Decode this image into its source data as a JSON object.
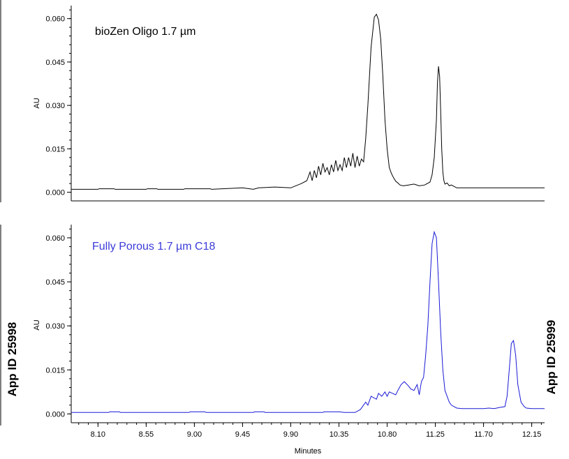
{
  "chart_data": [
    {
      "type": "line",
      "title": "bioZen Oligo 1.7 µm",
      "title_color": "#000000",
      "line_color": "#000000",
      "ylabel": "AU",
      "xlabel": "",
      "xlim": [
        7.85,
        12.27
      ],
      "ylim": [
        -0.003,
        0.0645
      ],
      "yticks": [
        "0.060",
        "0.045",
        "0.030",
        "0.015",
        "0.000"
      ],
      "ytick_values": [
        0.06,
        0.045,
        0.03,
        0.015,
        0.0
      ],
      "series": [
        {
          "x": [
            7.85,
            8.1,
            8.11,
            8.25,
            8.26,
            8.55,
            8.56,
            8.65,
            8.66,
            8.9,
            8.91,
            9.15,
            9.16,
            9.45,
            9.55,
            9.6,
            9.75,
            9.9,
            10.0,
            10.05,
            10.08,
            10.1,
            10.12,
            10.14,
            10.16,
            10.18,
            10.2,
            10.22,
            10.24,
            10.26,
            10.28,
            10.3,
            10.32,
            10.34,
            10.36,
            10.38,
            10.4,
            10.42,
            10.44,
            10.46,
            10.48,
            10.5,
            10.52,
            10.54,
            10.56,
            10.58,
            10.6,
            10.62,
            10.65,
            10.68,
            10.7,
            10.72,
            10.74,
            10.76,
            10.78,
            10.8,
            10.82,
            10.84,
            10.86,
            10.88,
            10.9,
            10.92,
            10.95,
            11.0,
            11.05,
            11.1,
            11.15,
            11.2,
            11.22,
            11.24,
            11.26,
            11.27,
            11.28,
            11.29,
            11.3,
            11.31,
            11.32,
            11.33,
            11.34,
            11.36,
            11.38,
            11.4,
            11.45,
            11.5,
            12.27
          ],
          "y": [
            0.001,
            0.001,
            0.0012,
            0.0012,
            0.001,
            0.001,
            0.0012,
            0.0012,
            0.001,
            0.001,
            0.0012,
            0.0012,
            0.001,
            0.0015,
            0.001,
            0.0015,
            0.0018,
            0.0015,
            0.003,
            0.004,
            0.007,
            0.004,
            0.0075,
            0.005,
            0.009,
            0.006,
            0.01,
            0.007,
            0.0085,
            0.006,
            0.0095,
            0.007,
            0.011,
            0.0075,
            0.0095,
            0.0075,
            0.012,
            0.0085,
            0.012,
            0.009,
            0.0135,
            0.0085,
            0.0125,
            0.009,
            0.0115,
            0.0105,
            0.0185,
            0.03,
            0.05,
            0.0605,
            0.0615,
            0.0595,
            0.053,
            0.04,
            0.025,
            0.015,
            0.0085,
            0.0065,
            0.005,
            0.0038,
            0.0032,
            0.0025,
            0.0022,
            0.0025,
            0.0028,
            0.0022,
            0.0025,
            0.0035,
            0.006,
            0.012,
            0.025,
            0.038,
            0.0435,
            0.04,
            0.028,
            0.015,
            0.007,
            0.004,
            0.0028,
            0.0032,
            0.0022,
            0.0025,
            0.0015,
            0.0015,
            0.0015
          ]
        }
      ]
    },
    {
      "type": "line",
      "title": "Fully Porous 1.7 µm C18",
      "title_color": "#3b3bd9",
      "line_color": "#1a1ad6",
      "ylabel": "AU",
      "xlabel": "Minutes",
      "xlim": [
        7.85,
        12.27
      ],
      "ylim": [
        -0.003,
        0.0645
      ],
      "xticks": [
        "8.10",
        "8.55",
        "9.00",
        "9.45",
        "9.90",
        "10.35",
        "10.80",
        "11.25",
        "11.70",
        "12.15"
      ],
      "xtick_values": [
        8.1,
        8.55,
        9.0,
        9.45,
        9.9,
        10.35,
        10.8,
        11.25,
        11.7,
        12.15
      ],
      "yticks": [
        "0.060",
        "0.045",
        "0.030",
        "0.015",
        "0.000"
      ],
      "ytick_values": [
        0.06,
        0.045,
        0.03,
        0.015,
        0.0
      ],
      "series": [
        {
          "x": [
            7.85,
            8.2,
            8.21,
            8.3,
            8.31,
            8.95,
            8.96,
            9.1,
            9.11,
            9.55,
            9.56,
            9.65,
            9.66,
            10.2,
            10.21,
            10.35,
            10.4,
            10.5,
            10.55,
            10.6,
            10.62,
            10.65,
            10.7,
            10.72,
            10.75,
            10.78,
            10.8,
            10.82,
            10.85,
            10.88,
            10.9,
            10.93,
            10.96,
            11.0,
            11.02,
            11.05,
            11.08,
            11.1,
            11.12,
            11.14,
            11.16,
            11.18,
            11.2,
            11.22,
            11.24,
            11.26,
            11.28,
            11.3,
            11.32,
            11.34,
            11.36,
            11.38,
            11.4,
            11.45,
            11.5,
            11.6,
            11.7,
            11.75,
            11.8,
            11.85,
            11.9,
            11.92,
            11.94,
            11.96,
            11.98,
            12.0,
            12.02,
            12.05,
            12.08,
            12.1,
            12.15,
            12.27
          ],
          "y": [
            0.0005,
            0.0005,
            0.0007,
            0.0007,
            0.0005,
            0.0005,
            0.0007,
            0.0007,
            0.0005,
            0.0005,
            0.0007,
            0.0007,
            0.0005,
            0.0005,
            0.0007,
            0.0007,
            0.0005,
            0.0005,
            0.0015,
            0.004,
            0.003,
            0.006,
            0.005,
            0.007,
            0.006,
            0.0075,
            0.006,
            0.0075,
            0.007,
            0.0065,
            0.008,
            0.01,
            0.011,
            0.0095,
            0.0085,
            0.008,
            0.01,
            0.0065,
            0.011,
            0.0125,
            0.02,
            0.03,
            0.045,
            0.058,
            0.062,
            0.06,
            0.045,
            0.028,
            0.015,
            0.008,
            0.006,
            0.004,
            0.003,
            0.002,
            0.0018,
            0.0018,
            0.0018,
            0.002,
            0.0018,
            0.0022,
            0.0025,
            0.006,
            0.015,
            0.024,
            0.025,
            0.02,
            0.01,
            0.004,
            0.0025,
            0.002,
            0.0018,
            0.0018
          ]
        }
      ]
    }
  ],
  "side_labels": {
    "left": "App ID 25998",
    "right": "App ID 25999"
  }
}
